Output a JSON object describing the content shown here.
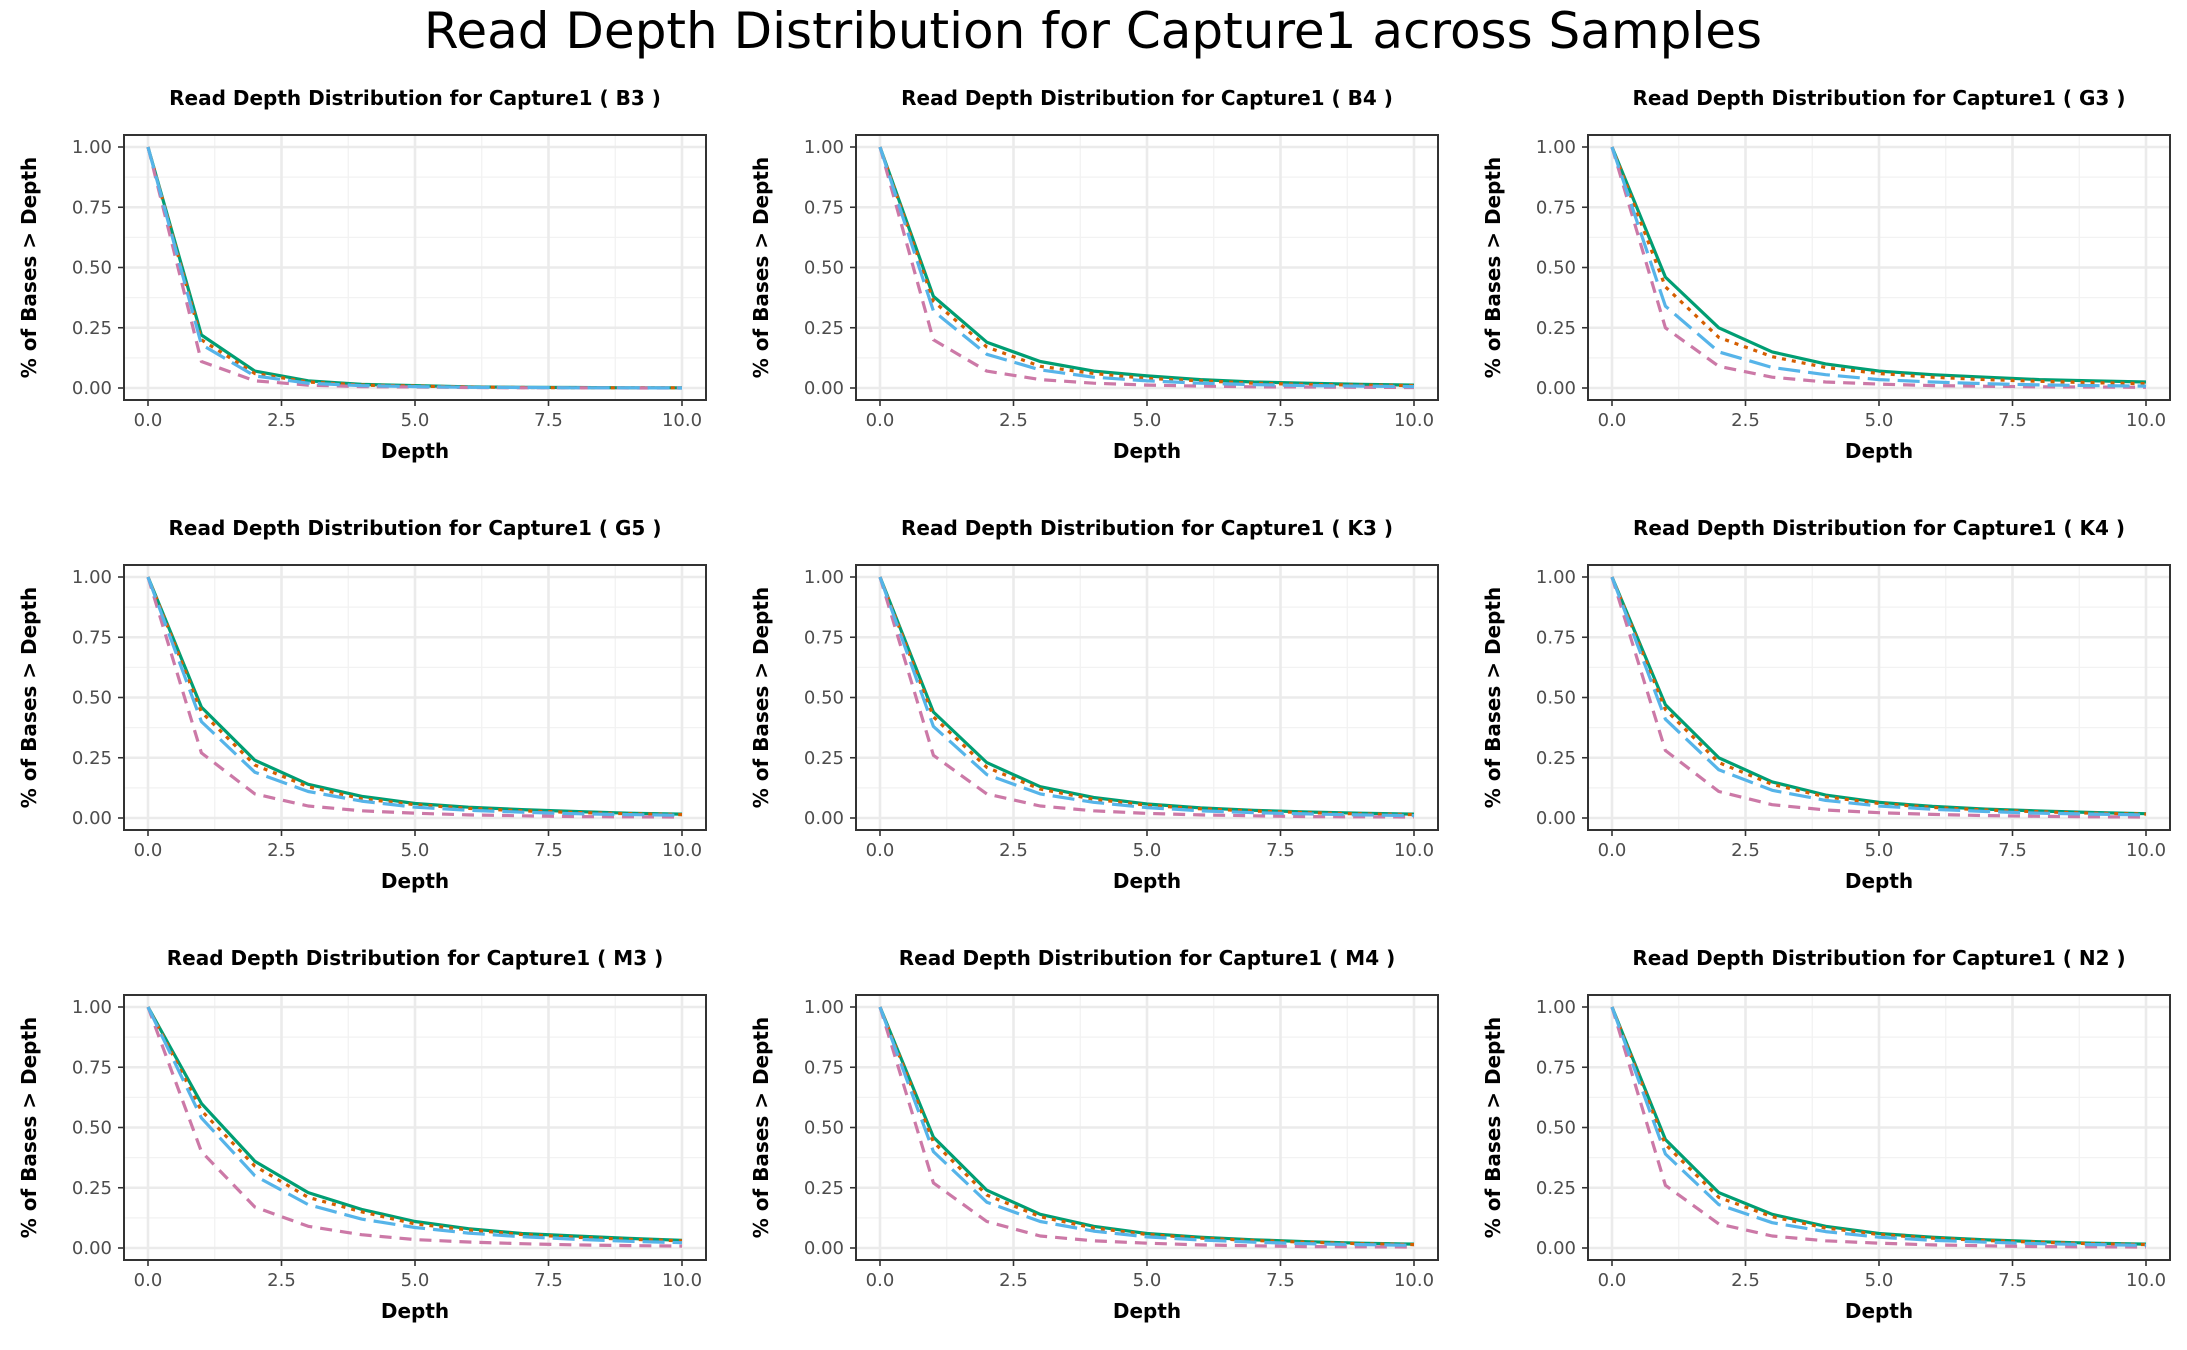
{
  "title": "Read Depth Distribution for Capture1 across Samples",
  "colors": {
    "green": "#009E73",
    "orange": "#D55E00",
    "blue": "#56B4E9",
    "pink": "#CC79A7"
  },
  "chart_data": [
    {
      "type": "line",
      "title": "Read Depth Distribution for Capture1 ( B3 )",
      "xlabel": "Depth",
      "ylabel": "% of Bases > Depth",
      "xlim": [
        0,
        10
      ],
      "ylim": [
        0,
        1
      ],
      "xticks": [
        "0.0",
        "2.5",
        "5.0",
        "7.5",
        "10.0"
      ],
      "yticks": [
        "0.00",
        "0.25",
        "0.50",
        "0.75",
        "1.00"
      ],
      "grid": true,
      "x": [
        0,
        1,
        2,
        3,
        4,
        5,
        6,
        7,
        8,
        9,
        10
      ],
      "series": [
        {
          "color": "#009E73",
          "dash": "solid",
          "values": [
            1.0,
            0.22,
            0.07,
            0.03,
            0.015,
            0.01,
            0.005,
            0.003,
            0.002,
            0.001,
            0.001
          ]
        },
        {
          "color": "#D55E00",
          "dash": "dotted",
          "values": [
            1.0,
            0.2,
            0.06,
            0.025,
            0.012,
            0.008,
            0.004,
            0.002,
            0.001,
            0.001,
            0.001
          ]
        },
        {
          "color": "#CC79A7",
          "dash": "dashed",
          "values": [
            1.0,
            0.11,
            0.03,
            0.012,
            0.006,
            0.004,
            0.002,
            0.001,
            0.001,
            0.0,
            0.0
          ]
        },
        {
          "color": "#56B4E9",
          "dash": "longdash",
          "values": [
            1.0,
            0.18,
            0.05,
            0.02,
            0.01,
            0.006,
            0.003,
            0.002,
            0.001,
            0.001,
            0.0
          ]
        }
      ]
    },
    {
      "type": "line",
      "title": "Read Depth Distribution for Capture1 ( B4 )",
      "xlabel": "Depth",
      "ylabel": "% of Bases > Depth",
      "xlim": [
        0,
        10
      ],
      "ylim": [
        0,
        1
      ],
      "xticks": [
        "0.0",
        "2.5",
        "5.0",
        "7.5",
        "10.0"
      ],
      "yticks": [
        "0.00",
        "0.25",
        "0.50",
        "0.75",
        "1.00"
      ],
      "grid": true,
      "x": [
        0,
        1,
        2,
        3,
        4,
        5,
        6,
        7,
        8,
        9,
        10
      ],
      "series": [
        {
          "color": "#009E73",
          "dash": "solid",
          "values": [
            1.0,
            0.38,
            0.19,
            0.11,
            0.07,
            0.05,
            0.035,
            0.025,
            0.02,
            0.015,
            0.012
          ]
        },
        {
          "color": "#D55E00",
          "dash": "dotted",
          "values": [
            1.0,
            0.36,
            0.17,
            0.09,
            0.06,
            0.04,
            0.03,
            0.02,
            0.015,
            0.012,
            0.01
          ]
        },
        {
          "color": "#CC79A7",
          "dash": "dashed",
          "values": [
            1.0,
            0.2,
            0.07,
            0.035,
            0.02,
            0.012,
            0.008,
            0.005,
            0.004,
            0.003,
            0.002
          ]
        },
        {
          "color": "#56B4E9",
          "dash": "longdash",
          "values": [
            1.0,
            0.32,
            0.14,
            0.075,
            0.045,
            0.03,
            0.02,
            0.014,
            0.01,
            0.008,
            0.006
          ]
        }
      ]
    },
    {
      "type": "line",
      "title": "Read Depth Distribution for Capture1 ( G3 )",
      "xlabel": "Depth",
      "ylabel": "% of Bases > Depth",
      "xlim": [
        0,
        10
      ],
      "ylim": [
        0,
        1
      ],
      "xticks": [
        "0.0",
        "2.5",
        "5.0",
        "7.5",
        "10.0"
      ],
      "yticks": [
        "0.00",
        "0.25",
        "0.50",
        "0.75",
        "1.00"
      ],
      "grid": true,
      "x": [
        0,
        1,
        2,
        3,
        4,
        5,
        6,
        7,
        8,
        9,
        10
      ],
      "series": [
        {
          "color": "#009E73",
          "dash": "solid",
          "values": [
            1.0,
            0.46,
            0.25,
            0.15,
            0.1,
            0.07,
            0.055,
            0.045,
            0.035,
            0.03,
            0.025
          ]
        },
        {
          "color": "#D55E00",
          "dash": "dotted",
          "values": [
            1.0,
            0.42,
            0.21,
            0.13,
            0.085,
            0.06,
            0.045,
            0.035,
            0.028,
            0.022,
            0.018
          ]
        },
        {
          "color": "#CC79A7",
          "dash": "dashed",
          "values": [
            1.0,
            0.25,
            0.09,
            0.045,
            0.025,
            0.016,
            0.01,
            0.007,
            0.005,
            0.004,
            0.003
          ]
        },
        {
          "color": "#56B4E9",
          "dash": "longdash",
          "values": [
            1.0,
            0.34,
            0.15,
            0.085,
            0.055,
            0.035,
            0.025,
            0.018,
            0.013,
            0.01,
            0.008
          ]
        }
      ]
    },
    {
      "type": "line",
      "title": "Read Depth Distribution for Capture1 ( G5 )",
      "xlabel": "Depth",
      "ylabel": "% of Bases > Depth",
      "xlim": [
        0,
        10
      ],
      "ylim": [
        0,
        1
      ],
      "xticks": [
        "0.0",
        "2.5",
        "5.0",
        "7.5",
        "10.0"
      ],
      "yticks": [
        "0.00",
        "0.25",
        "0.50",
        "0.75",
        "1.00"
      ],
      "grid": true,
      "x": [
        0,
        1,
        2,
        3,
        4,
        5,
        6,
        7,
        8,
        9,
        10
      ],
      "series": [
        {
          "color": "#009E73",
          "dash": "solid",
          "values": [
            1.0,
            0.46,
            0.24,
            0.14,
            0.09,
            0.06,
            0.045,
            0.035,
            0.027,
            0.02,
            0.016
          ]
        },
        {
          "color": "#D55E00",
          "dash": "dotted",
          "values": [
            1.0,
            0.44,
            0.22,
            0.13,
            0.08,
            0.055,
            0.04,
            0.03,
            0.023,
            0.018,
            0.014
          ]
        },
        {
          "color": "#CC79A7",
          "dash": "dashed",
          "values": [
            1.0,
            0.27,
            0.1,
            0.05,
            0.03,
            0.02,
            0.013,
            0.009,
            0.006,
            0.005,
            0.004
          ]
        },
        {
          "color": "#56B4E9",
          "dash": "longdash",
          "values": [
            1.0,
            0.4,
            0.19,
            0.11,
            0.07,
            0.045,
            0.032,
            0.024,
            0.018,
            0.014,
            0.011
          ]
        }
      ]
    },
    {
      "type": "line",
      "title": "Read Depth Distribution for Capture1 ( K3 )",
      "xlabel": "Depth",
      "ylabel": "% of Bases > Depth",
      "xlim": [
        0,
        10
      ],
      "ylim": [
        0,
        1
      ],
      "xticks": [
        "0.0",
        "2.5",
        "5.0",
        "7.5",
        "10.0"
      ],
      "yticks": [
        "0.00",
        "0.25",
        "0.50",
        "0.75",
        "1.00"
      ],
      "grid": true,
      "x": [
        0,
        1,
        2,
        3,
        4,
        5,
        6,
        7,
        8,
        9,
        10
      ],
      "series": [
        {
          "color": "#009E73",
          "dash": "solid",
          "values": [
            1.0,
            0.44,
            0.23,
            0.13,
            0.085,
            0.058,
            0.042,
            0.032,
            0.025,
            0.02,
            0.016
          ]
        },
        {
          "color": "#D55E00",
          "dash": "dotted",
          "values": [
            1.0,
            0.42,
            0.21,
            0.12,
            0.078,
            0.053,
            0.038,
            0.029,
            0.022,
            0.017,
            0.014
          ]
        },
        {
          "color": "#CC79A7",
          "dash": "dashed",
          "values": [
            1.0,
            0.26,
            0.1,
            0.05,
            0.03,
            0.019,
            0.013,
            0.009,
            0.006,
            0.005,
            0.004
          ]
        },
        {
          "color": "#56B4E9",
          "dash": "longdash",
          "values": [
            1.0,
            0.38,
            0.18,
            0.1,
            0.065,
            0.043,
            0.03,
            0.022,
            0.017,
            0.013,
            0.01
          ]
        }
      ]
    },
    {
      "type": "line",
      "title": "Read Depth Distribution for Capture1 ( K4 )",
      "xlabel": "Depth",
      "ylabel": "% of Bases > Depth",
      "xlim": [
        0,
        10
      ],
      "ylim": [
        0,
        1
      ],
      "xticks": [
        "0.0",
        "2.5",
        "5.0",
        "7.5",
        "10.0"
      ],
      "yticks": [
        "0.00",
        "0.25",
        "0.50",
        "0.75",
        "1.00"
      ],
      "grid": true,
      "x": [
        0,
        1,
        2,
        3,
        4,
        5,
        6,
        7,
        8,
        9,
        10
      ],
      "series": [
        {
          "color": "#009E73",
          "dash": "solid",
          "values": [
            1.0,
            0.47,
            0.25,
            0.15,
            0.095,
            0.065,
            0.048,
            0.037,
            0.029,
            0.023,
            0.018
          ]
        },
        {
          "color": "#D55E00",
          "dash": "dotted",
          "values": [
            1.0,
            0.45,
            0.23,
            0.14,
            0.088,
            0.06,
            0.044,
            0.033,
            0.026,
            0.02,
            0.016
          ]
        },
        {
          "color": "#CC79A7",
          "dash": "dashed",
          "values": [
            1.0,
            0.28,
            0.11,
            0.055,
            0.033,
            0.022,
            0.015,
            0.01,
            0.007,
            0.005,
            0.004
          ]
        },
        {
          "color": "#56B4E9",
          "dash": "longdash",
          "values": [
            1.0,
            0.41,
            0.2,
            0.115,
            0.073,
            0.05,
            0.036,
            0.027,
            0.02,
            0.016,
            0.013
          ]
        }
      ]
    },
    {
      "type": "line",
      "title": "Read Depth Distribution for Capture1 ( M3 )",
      "xlabel": "Depth",
      "ylabel": "% of Bases > Depth",
      "xlim": [
        0,
        10
      ],
      "ylim": [
        0,
        1
      ],
      "xticks": [
        "0.0",
        "2.5",
        "5.0",
        "7.5",
        "10.0"
      ],
      "yticks": [
        "0.00",
        "0.25",
        "0.50",
        "0.75",
        "1.00"
      ],
      "grid": true,
      "x": [
        0,
        1,
        2,
        3,
        4,
        5,
        6,
        7,
        8,
        9,
        10
      ],
      "series": [
        {
          "color": "#009E73",
          "dash": "solid",
          "values": [
            1.0,
            0.6,
            0.36,
            0.23,
            0.16,
            0.11,
            0.08,
            0.06,
            0.05,
            0.04,
            0.032
          ]
        },
        {
          "color": "#D55E00",
          "dash": "dotted",
          "values": [
            1.0,
            0.57,
            0.34,
            0.21,
            0.15,
            0.1,
            0.075,
            0.056,
            0.045,
            0.036,
            0.03
          ]
        },
        {
          "color": "#CC79A7",
          "dash": "dashed",
          "values": [
            1.0,
            0.4,
            0.17,
            0.09,
            0.055,
            0.035,
            0.025,
            0.018,
            0.013,
            0.01,
            0.008
          ]
        },
        {
          "color": "#56B4E9",
          "dash": "longdash",
          "values": [
            1.0,
            0.54,
            0.3,
            0.18,
            0.12,
            0.085,
            0.062,
            0.047,
            0.036,
            0.028,
            0.022
          ]
        }
      ]
    },
    {
      "type": "line",
      "title": "Read Depth Distribution for Capture1 ( M4 )",
      "xlabel": "Depth",
      "ylabel": "% of Bases > Depth",
      "xlim": [
        0,
        10
      ],
      "ylim": [
        0,
        1
      ],
      "xticks": [
        "0.0",
        "2.5",
        "5.0",
        "7.5",
        "10.0"
      ],
      "yticks": [
        "0.00",
        "0.25",
        "0.50",
        "0.75",
        "1.00"
      ],
      "grid": true,
      "x": [
        0,
        1,
        2,
        3,
        4,
        5,
        6,
        7,
        8,
        9,
        10
      ],
      "series": [
        {
          "color": "#009E73",
          "dash": "solid",
          "values": [
            1.0,
            0.46,
            0.24,
            0.14,
            0.09,
            0.06,
            0.045,
            0.034,
            0.026,
            0.02,
            0.016
          ]
        },
        {
          "color": "#D55E00",
          "dash": "dotted",
          "values": [
            1.0,
            0.44,
            0.22,
            0.13,
            0.083,
            0.056,
            0.041,
            0.031,
            0.024,
            0.018,
            0.014
          ]
        },
        {
          "color": "#CC79A7",
          "dash": "dashed",
          "values": [
            1.0,
            0.27,
            0.11,
            0.05,
            0.03,
            0.02,
            0.013,
            0.009,
            0.006,
            0.005,
            0.004
          ]
        },
        {
          "color": "#56B4E9",
          "dash": "longdash",
          "values": [
            1.0,
            0.4,
            0.19,
            0.11,
            0.07,
            0.046,
            0.033,
            0.024,
            0.018,
            0.014,
            0.011
          ]
        }
      ]
    },
    {
      "type": "line",
      "title": "Read Depth Distribution for Capture1 ( N2 )",
      "xlabel": "Depth",
      "ylabel": "% of Bases > Depth",
      "xlim": [
        0,
        10
      ],
      "ylim": [
        0,
        1
      ],
      "xticks": [
        "0.0",
        "2.5",
        "5.0",
        "7.5",
        "10.0"
      ],
      "yticks": [
        "0.00",
        "0.25",
        "0.50",
        "0.75",
        "1.00"
      ],
      "grid": true,
      "x": [
        0,
        1,
        2,
        3,
        4,
        5,
        6,
        7,
        8,
        9,
        10
      ],
      "series": [
        {
          "color": "#009E73",
          "dash": "solid",
          "values": [
            1.0,
            0.45,
            0.23,
            0.14,
            0.09,
            0.06,
            0.045,
            0.034,
            0.026,
            0.02,
            0.016
          ]
        },
        {
          "color": "#D55E00",
          "dash": "dotted",
          "values": [
            1.0,
            0.43,
            0.21,
            0.13,
            0.083,
            0.056,
            0.041,
            0.031,
            0.024,
            0.018,
            0.014
          ]
        },
        {
          "color": "#CC79A7",
          "dash": "dashed",
          "values": [
            1.0,
            0.26,
            0.1,
            0.05,
            0.03,
            0.02,
            0.013,
            0.009,
            0.006,
            0.005,
            0.004
          ]
        },
        {
          "color": "#56B4E9",
          "dash": "longdash",
          "values": [
            1.0,
            0.39,
            0.18,
            0.105,
            0.068,
            0.045,
            0.032,
            0.024,
            0.018,
            0.014,
            0.011
          ]
        }
      ]
    }
  ]
}
